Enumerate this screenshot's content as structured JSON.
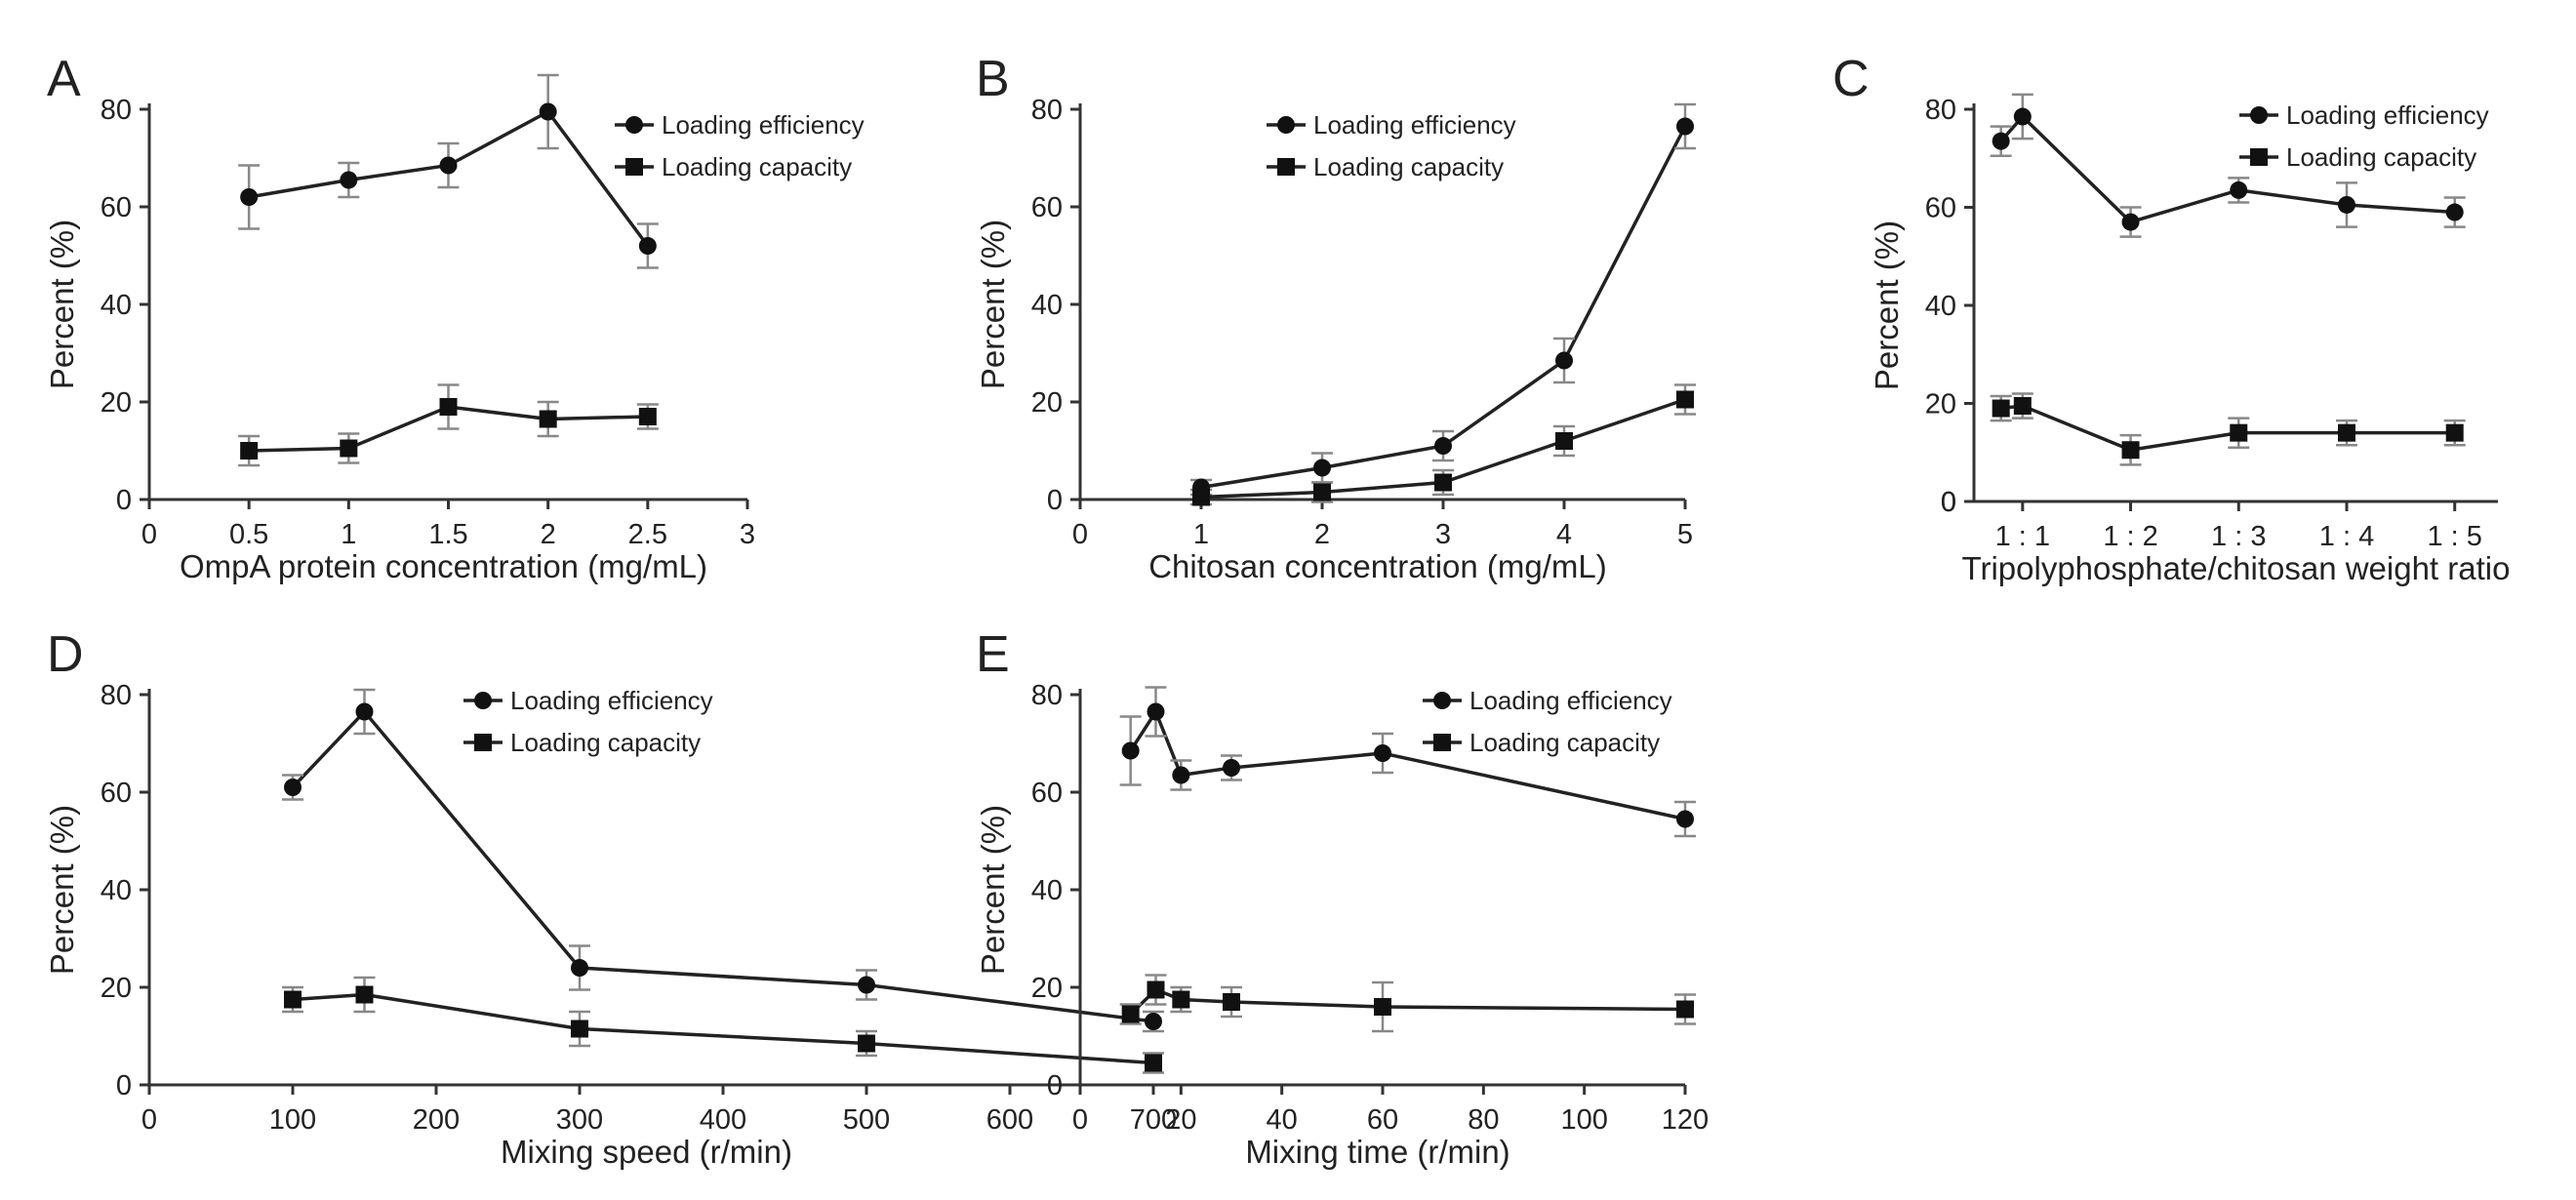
{
  "figure": {
    "chart_data": [
      {
        "panel": "A",
        "type": "line",
        "xlabel": "OmpA protein concentration (mg/mL)",
        "ylabel": "Percent (%)",
        "x_ticks": [
          "0",
          "0.5",
          "1",
          "1.5",
          "2",
          "2.5",
          "3"
        ],
        "y_ticks": [
          "0",
          "20",
          "40",
          "60",
          "80"
        ],
        "xlim": [
          0,
          3
        ],
        "ylim": [
          0,
          80
        ],
        "legend": "top-right",
        "series": [
          {
            "name": "Loading efficiency",
            "marker": "circle",
            "x": [
              0.5,
              1,
              1.5,
              2,
              2.5
            ],
            "values": [
              62,
              65.5,
              68.5,
              79.5,
              52
            ],
            "errors": [
              6.5,
              3.5,
              4.5,
              7.5,
              4.5
            ]
          },
          {
            "name": "Loading capacity",
            "marker": "square",
            "x": [
              0.5,
              1,
              1.5,
              2,
              2.5
            ],
            "values": [
              10,
              10.5,
              19,
              16.5,
              17
            ],
            "errors": [
              3,
              3,
              4.5,
              3.5,
              2.5
            ]
          }
        ]
      },
      {
        "panel": "B",
        "type": "line",
        "xlabel": "Chitosan concentration (mg/mL)",
        "ylabel": "Percent (%)",
        "x_ticks": [
          "0",
          "1",
          "2",
          "3",
          "4",
          "5"
        ],
        "y_ticks": [
          "0",
          "20",
          "40",
          "60",
          "80"
        ],
        "xlim": [
          0,
          5
        ],
        "ylim": [
          0,
          80
        ],
        "legend": "top-right",
        "series": [
          {
            "name": "Loading efficiency",
            "marker": "circle",
            "x": [
              1,
              2,
              3,
              4,
              5
            ],
            "values": [
              2.5,
              6.5,
              11,
              28.5,
              76.5
            ],
            "errors": [
              1.5,
              3,
              3,
              4.5,
              4.5
            ]
          },
          {
            "name": "Loading capacity",
            "marker": "square",
            "x": [
              1,
              2,
              3,
              4,
              5
            ],
            "values": [
              0.5,
              1.5,
              3.5,
              12,
              20.5
            ],
            "errors": [
              1.5,
              2,
              2.5,
              3,
              3
            ]
          }
        ]
      },
      {
        "panel": "C",
        "type": "line",
        "xlabel": "Tripolyphosphate/chitosan weight ratio",
        "ylabel": "Percent (%)",
        "x_ticks": [
          "1 : 1",
          "1 : 2",
          "1 : 3",
          "1 : 4",
          "1 : 5"
        ],
        "y_ticks": [
          "0",
          "20",
          "40",
          "60",
          "80"
        ],
        "xlim": [
          0.55,
          5.4
        ],
        "ylim": [
          0,
          80
        ],
        "legend": "top-right",
        "series": [
          {
            "name": "Loading efficiency",
            "marker": "circle",
            "x": [
              0.8,
              1,
              2,
              3,
              4,
              5
            ],
            "values": [
              73.5,
              78.5,
              57,
              63.5,
              60.5,
              59
            ],
            "errors": [
              3,
              4.5,
              3,
              2.5,
              4.5,
              3
            ]
          },
          {
            "name": "Loading capacity",
            "marker": "square",
            "x": [
              0.8,
              1,
              2,
              3,
              4,
              5
            ],
            "values": [
              19,
              19.5,
              10.5,
              14,
              14,
              14
            ],
            "errors": [
              2.5,
              2.5,
              3,
              3,
              2.5,
              2.5
            ]
          }
        ]
      },
      {
        "panel": "D",
        "type": "line",
        "xlabel": "Mixing speed (r/min)",
        "ylabel": "Percent (%)",
        "x_ticks": [
          "0",
          "100",
          "200",
          "300",
          "400",
          "500",
          "600",
          "700"
        ],
        "y_ticks": [
          "0",
          "20",
          "40",
          "60",
          "80"
        ],
        "xlim": [
          0,
          700
        ],
        "ylim": [
          0,
          80
        ],
        "legend": "top-right",
        "series": [
          {
            "name": "Loading efficiency",
            "marker": "circle",
            "x": [
              100,
              150,
              300,
              500,
              700
            ],
            "values": [
              61,
              76.5,
              24,
              20.5,
              13
            ],
            "errors": [
              2.5,
              4.5,
              4.5,
              3,
              2
            ]
          },
          {
            "name": "Loading capacity",
            "marker": "square",
            "x": [
              100,
              150,
              300,
              500,
              700
            ],
            "values": [
              17.5,
              18.5,
              11.5,
              8.5,
              4.5
            ],
            "errors": [
              2.5,
              3.5,
              3.5,
              2.5,
              2
            ]
          }
        ]
      },
      {
        "panel": "E",
        "type": "line",
        "xlabel": "Mixing time (r/min)",
        "ylabel": "Percent (%)",
        "x_ticks": [
          "0",
          "20",
          "40",
          "60",
          "80",
          "100",
          "120"
        ],
        "y_ticks": [
          "0",
          "20",
          "40",
          "60",
          "80"
        ],
        "xlim": [
          0,
          120
        ],
        "ylim": [
          0,
          80
        ],
        "legend": "top-right",
        "series": [
          {
            "name": "Loading efficiency",
            "marker": "circle",
            "x": [
              10,
              15,
              20,
              30,
              60,
              120
            ],
            "values": [
              68.5,
              76.5,
              63.5,
              65,
              68,
              54.5
            ],
            "errors": [
              7,
              5,
              3,
              2.5,
              4,
              3.5
            ]
          },
          {
            "name": "Loading capacity",
            "marker": "square",
            "x": [
              10,
              15,
              20,
              30,
              60,
              120
            ],
            "values": [
              14.5,
              19.5,
              17.5,
              17,
              16,
              15.5
            ],
            "errors": [
              2,
              3,
              2.5,
              3,
              5,
              3
            ]
          }
        ]
      }
    ]
  }
}
